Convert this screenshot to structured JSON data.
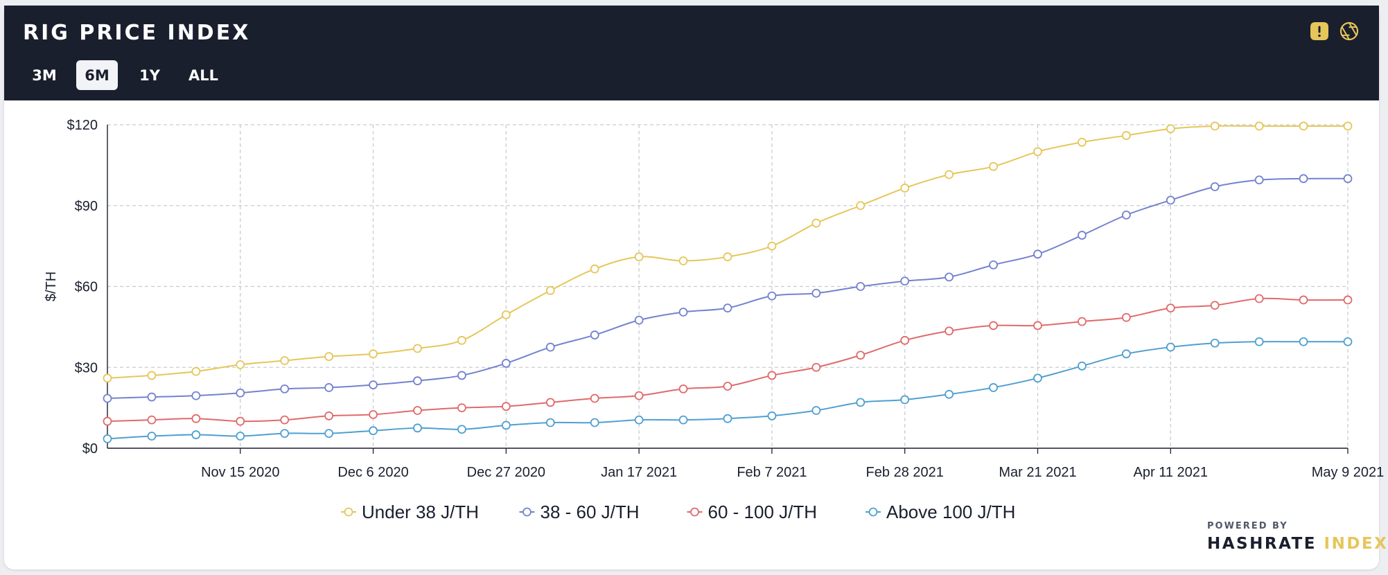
{
  "header": {
    "title": "RIG PRICE INDEX",
    "ranges": [
      {
        "label": "3M",
        "active": false
      },
      {
        "label": "6M",
        "active": true
      },
      {
        "label": "1Y",
        "active": false
      },
      {
        "label": "ALL",
        "active": false
      }
    ],
    "icons": [
      "warning-icon",
      "aperture-icon"
    ],
    "icon_color": "#e6c65a",
    "background": "#1a1f2e"
  },
  "chart_data": {
    "type": "line",
    "title": "",
    "xlabel": "",
    "ylabel": "$/TH",
    "ylim": [
      0,
      120
    ],
    "y_ticks": [
      "$0",
      "$30",
      "$60",
      "$90",
      "$120"
    ],
    "x": [
      "2020-10-25",
      "2020-11-01",
      "2020-11-08",
      "2020-11-15",
      "2020-11-22",
      "2020-11-29",
      "2020-12-06",
      "2020-12-13",
      "2020-12-20",
      "2020-12-27",
      "2021-01-03",
      "2021-01-10",
      "2021-01-17",
      "2021-01-24",
      "2021-01-31",
      "2021-02-07",
      "2021-02-14",
      "2021-02-21",
      "2021-02-28",
      "2021-03-07",
      "2021-03-14",
      "2021-03-21",
      "2021-03-28",
      "2021-04-04",
      "2021-04-11",
      "2021-04-18",
      "2021-04-25",
      "2021-05-02",
      "2021-05-09"
    ],
    "x_tick_labels": [
      {
        "date": "2020-11-15",
        "label": "Nov 15 2020"
      },
      {
        "date": "2020-12-06",
        "label": "Dec 6 2020"
      },
      {
        "date": "2020-12-27",
        "label": "Dec 27 2020"
      },
      {
        "date": "2021-01-17",
        "label": "Jan 17 2021"
      },
      {
        "date": "2021-02-07",
        "label": "Feb 7 2021"
      },
      {
        "date": "2021-02-28",
        "label": "Feb 28 2021"
      },
      {
        "date": "2021-03-21",
        "label": "Mar 21 2021"
      },
      {
        "date": "2021-04-11",
        "label": "Apr 11 2021"
      },
      {
        "date": "2021-05-09",
        "label": "May 9 2021"
      }
    ],
    "series": [
      {
        "name": "Under 38 J/TH",
        "color": "#e6c65a",
        "values": [
          26,
          27,
          28.5,
          31,
          32.5,
          34,
          35,
          37,
          40,
          49.5,
          58.5,
          66.5,
          71,
          69.5,
          71,
          75,
          83.5,
          90,
          96.5,
          101.5,
          104.5,
          110,
          113.5,
          116,
          118.5,
          119.5,
          119.5,
          119.5,
          119.5
        ]
      },
      {
        "name": "38 - 60 J/TH",
        "color": "#7481cf",
        "values": [
          18.5,
          19,
          19.5,
          20.5,
          22,
          22.5,
          23.5,
          25,
          27,
          31.5,
          37.5,
          42,
          47.5,
          50.5,
          52,
          56.5,
          57.5,
          60,
          62,
          63.5,
          68,
          72,
          79,
          86.5,
          92,
          97,
          99.5,
          100,
          100
        ]
      },
      {
        "name": "60 - 100 J/TH",
        "color": "#e06a6a",
        "values": [
          10,
          10.5,
          11,
          10,
          10.5,
          12,
          12.5,
          14,
          15,
          15.5,
          17,
          18.5,
          19.5,
          22,
          23,
          27,
          30,
          34.5,
          40,
          43.5,
          45.5,
          45.5,
          47,
          48.5,
          52,
          53,
          55.5,
          55,
          55
        ]
      },
      {
        "name": "Above 100 J/TH",
        "color": "#4f9fd1",
        "values": [
          3.5,
          4.5,
          5,
          4.5,
          5.5,
          5.5,
          6.5,
          7.5,
          7,
          8.5,
          9.5,
          9.5,
          10.5,
          10.5,
          11,
          12,
          14,
          17,
          18,
          20,
          22.5,
          26,
          30.5,
          35,
          37.5,
          39,
          39.5,
          39.5,
          39.5
        ]
      }
    ],
    "grid": true,
    "legend_position": "bottom-center"
  },
  "footer": {
    "powered_by": "POWERED BY",
    "brand_part1": "HASHRATE",
    "brand_part2": "INDEX"
  }
}
